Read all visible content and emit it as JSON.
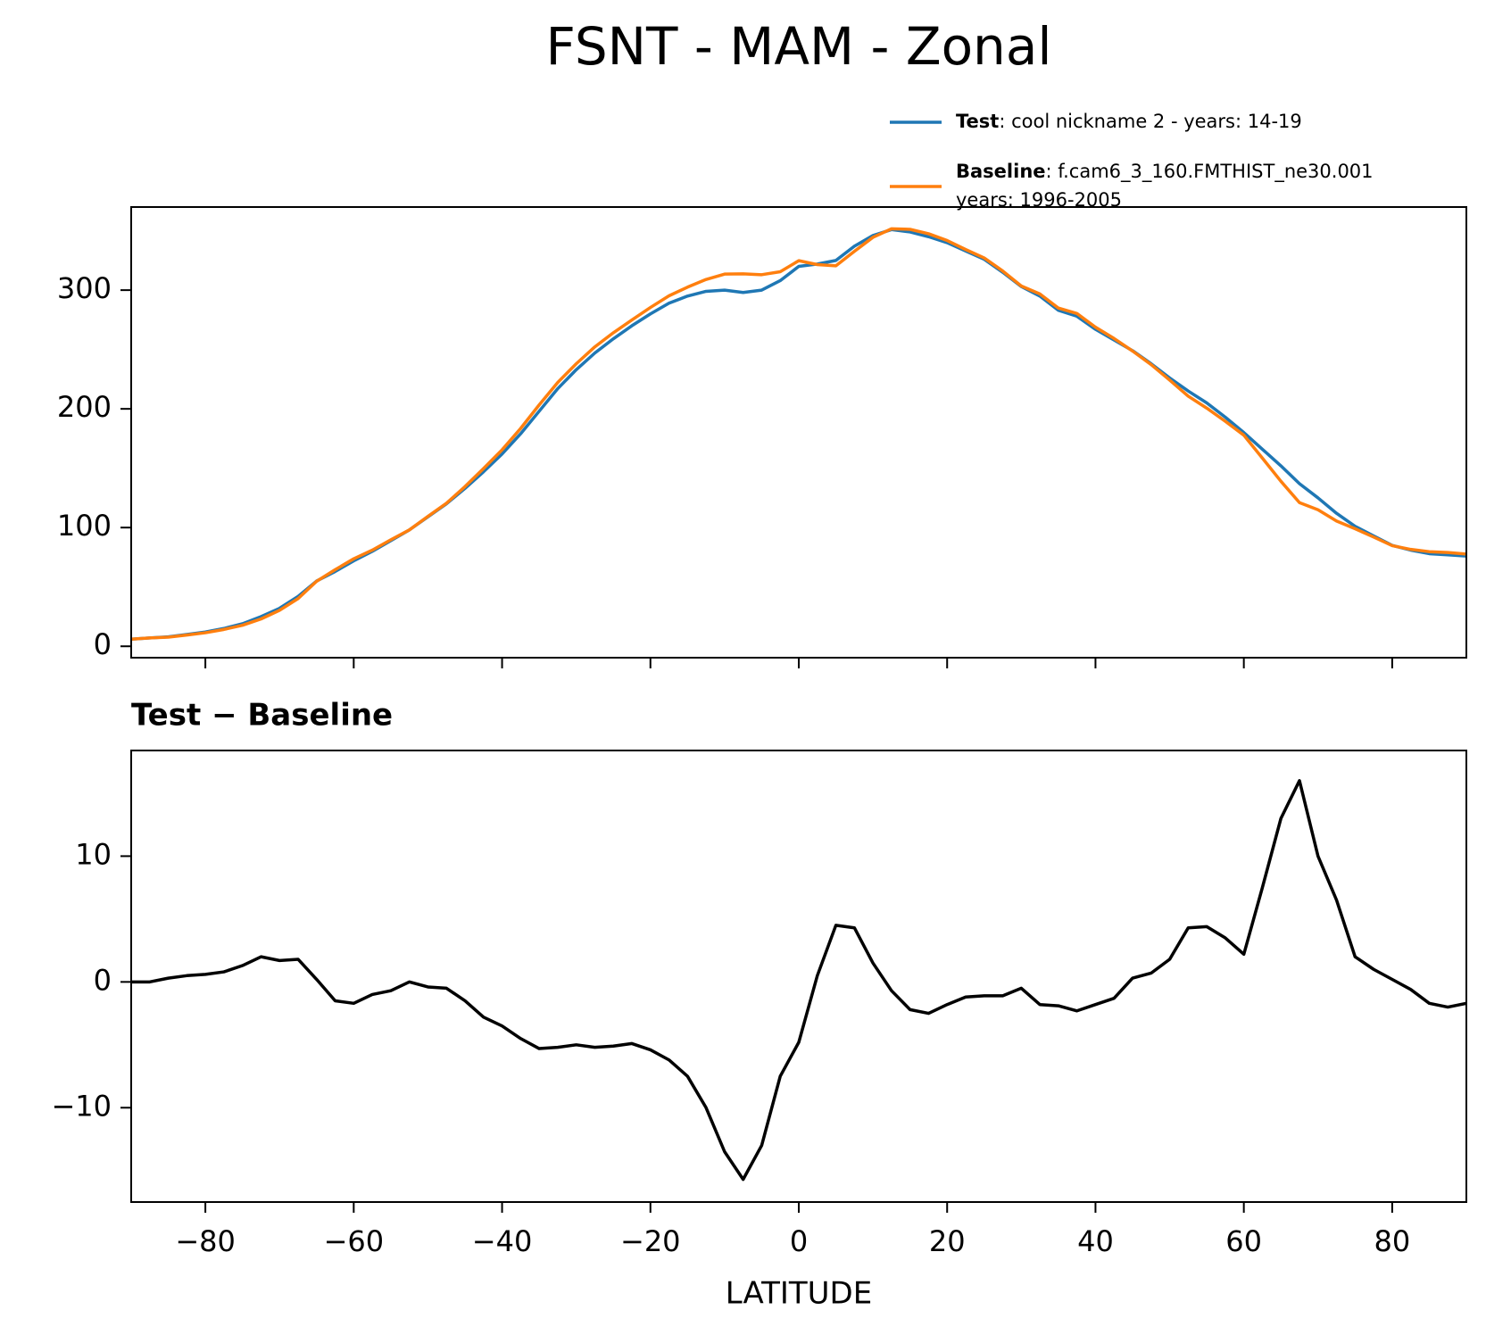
{
  "chart_data": [
    {
      "type": "line",
      "title": "FSNT - MAM - Zonal",
      "x": [
        -90,
        -87.5,
        -85,
        -82.5,
        -80,
        -77.5,
        -75,
        -72.5,
        -70,
        -67.5,
        -65,
        -62.5,
        -60,
        -57.5,
        -55,
        -52.5,
        -50,
        -47.5,
        -45,
        -42.5,
        -40,
        -37.5,
        -35,
        -32.5,
        -30,
        -27.5,
        -25,
        -22.5,
        -20,
        -17.5,
        -15,
        -12.5,
        -10,
        -7.5,
        -5,
        -2.5,
        0,
        2.5,
        5,
        7.5,
        10,
        12.5,
        15,
        17.5,
        20,
        22.5,
        25,
        27.5,
        30,
        32.5,
        35,
        37.5,
        40,
        42.5,
        45,
        47.5,
        50,
        52.5,
        55,
        57.5,
        60,
        62.5,
        65,
        67.5,
        70,
        72.5,
        75,
        77.5,
        80,
        82.5,
        85,
        87.5,
        90
      ],
      "series": [
        {
          "name": "Test",
          "label_lines": [
            ": cool nickname 2 - years: 14-19"
          ],
          "color": "#1f77b4",
          "values": [
            6,
            7,
            8,
            10,
            12,
            15,
            19,
            25,
            32,
            42,
            55,
            63,
            72,
            80,
            89,
            98,
            109,
            120,
            133,
            147,
            162,
            179,
            198,
            217,
            233,
            247,
            259,
            270,
            280,
            289,
            295,
            299,
            300,
            298,
            300,
            308,
            320,
            322,
            325,
            337,
            346,
            351,
            349,
            345,
            340,
            333,
            326,
            315,
            303,
            295,
            283,
            278,
            267,
            258,
            249,
            238,
            226,
            215,
            205,
            193,
            180,
            166,
            152,
            137,
            125,
            112,
            101,
            93,
            85,
            81,
            78,
            77,
            76
          ]
        },
        {
          "name": "Baseline",
          "label_lines": [
            ": f.cam6_3_160.FMTHIST_ne30.001",
            "years: 1996-2005"
          ],
          "color": "#ff7f0e",
          "values": [
            6,
            7,
            7.7,
            9.5,
            11.4,
            14.2,
            17.7,
            23,
            30.3,
            40.2,
            54.8,
            64.5,
            73.7,
            81,
            89.7,
            98,
            109.4,
            120.5,
            134.5,
            149.8,
            165.5,
            183.5,
            203.3,
            222.2,
            238,
            252.2,
            264.1,
            274.9,
            285.4,
            295.2,
            302.5,
            309,
            313.5,
            313.7,
            313,
            315.5,
            324.8,
            321.5,
            320.5,
            332.7,
            344.5,
            351.7,
            351.2,
            347.5,
            341.8,
            334.2,
            327.1,
            316.1,
            303.5,
            296.8,
            284.9,
            280.3,
            268.8,
            259.3,
            248.7,
            237.3,
            224.2,
            210.7,
            200.6,
            189.5,
            177.8,
            158.5,
            139,
            121,
            115,
            105.5,
            99,
            92,
            84.8,
            81.6,
            79.7,
            79,
            77.7
          ]
        }
      ],
      "xlim": [
        -90,
        90
      ],
      "xticks": [
        -80,
        -60,
        -40,
        -20,
        0,
        20,
        40,
        60,
        80
      ],
      "ylim": [
        -9.6,
        370
      ],
      "yticks": [
        0,
        100,
        200,
        300
      ]
    },
    {
      "type": "line",
      "title": "Test − Baseline",
      "xlabel": "LATITUDE",
      "x": [
        -90,
        -87.5,
        -85,
        -82.5,
        -80,
        -77.5,
        -75,
        -72.5,
        -70,
        -67.5,
        -65,
        -62.5,
        -60,
        -57.5,
        -55,
        -52.5,
        -50,
        -47.5,
        -45,
        -42.5,
        -40,
        -37.5,
        -35,
        -32.5,
        -30,
        -27.5,
        -25,
        -22.5,
        -20,
        -17.5,
        -15,
        -12.5,
        -10,
        -7.5,
        -5,
        -2.5,
        0,
        2.5,
        5,
        7.5,
        10,
        12.5,
        15,
        17.5,
        20,
        22.5,
        25,
        27.5,
        30,
        32.5,
        35,
        37.5,
        40,
        42.5,
        45,
        47.5,
        50,
        52.5,
        55,
        57.5,
        60,
        62.5,
        65,
        67.5,
        70,
        72.5,
        75,
        77.5,
        80,
        82.5,
        85,
        87.5,
        90
      ],
      "series": [
        {
          "color": "#000000",
          "values": [
            0,
            0,
            0.3,
            0.5,
            0.6,
            0.8,
            1.3,
            2,
            1.7,
            1.8,
            0.2,
            -1.5,
            -1.7,
            -1,
            -0.7,
            0,
            -0.4,
            -0.5,
            -1.5,
            -2.8,
            -3.5,
            -4.5,
            -5.3,
            -5.2,
            -5,
            -5.2,
            -5.1,
            -4.9,
            -5.4,
            -6.2,
            -7.5,
            -10,
            -13.5,
            -15.7,
            -13,
            -7.5,
            -4.8,
            0.5,
            4.5,
            4.3,
            1.5,
            -0.7,
            -2.2,
            -2.5,
            -1.8,
            -1.2,
            -1.1,
            -1.1,
            -0.5,
            -1.8,
            -1.9,
            -2.3,
            -1.8,
            -1.3,
            0.3,
            0.7,
            1.8,
            4.3,
            4.4,
            3.5,
            2.2,
            7.5,
            13,
            16,
            10,
            6.5,
            2,
            1,
            0.2,
            -0.6,
            -1.7,
            -2,
            -1.7
          ]
        }
      ],
      "xlim": [
        -90,
        90
      ],
      "xticks": [
        {
          "value": -80,
          "label": "−80"
        },
        {
          "value": -60,
          "label": "−60"
        },
        {
          "value": -40,
          "label": "−40"
        },
        {
          "value": -20,
          "label": "−20"
        },
        0,
        20,
        40,
        60,
        80
      ],
      "ylim": [
        -17.5,
        18.4
      ],
      "yticks": [
        {
          "value": -10,
          "label": "−10"
        },
        0,
        10
      ]
    }
  ]
}
